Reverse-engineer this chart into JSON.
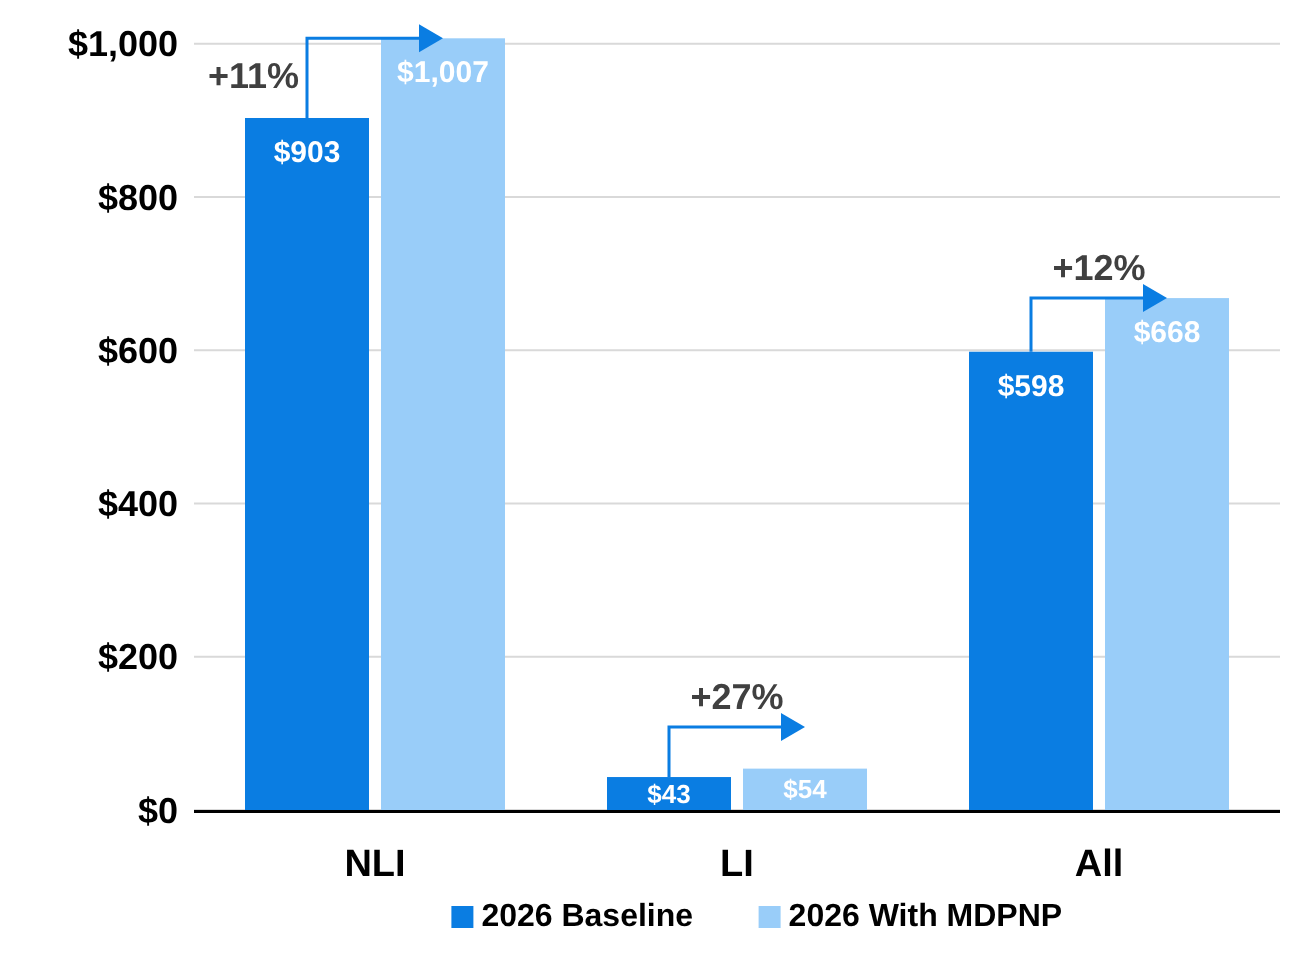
{
  "chart_data": {
    "type": "bar",
    "categories": [
      "NLI",
      "LI",
      "All"
    ],
    "series": [
      {
        "name": "2026 Baseline",
        "color": "#0a7de2",
        "values": [
          903,
          43,
          598
        ],
        "value_labels": [
          "$903",
          "$43",
          "$598"
        ]
      },
      {
        "name": "2026 With MDPNP",
        "color": "#99cdf9",
        "values": [
          1007,
          54,
          668
        ],
        "value_labels": [
          "$1,007",
          "$54",
          "$668"
        ]
      }
    ],
    "ylim": [
      0,
      1010
    ],
    "yticks": [
      {
        "value": 0,
        "label": "$0"
      },
      {
        "value": 200,
        "label": "$200"
      },
      {
        "value": 400,
        "label": "$400"
      },
      {
        "value": 600,
        "label": "$600"
      },
      {
        "value": 800,
        "label": "$800"
      },
      {
        "value": 1000,
        "label": "$1,000"
      }
    ],
    "grid": "y",
    "legend": "bottom",
    "annotations": [
      {
        "text": "+11%",
        "x": "NLI",
        "y": 1007
      },
      {
        "text": "+27%",
        "x": "LI",
        "y": 54
      },
      {
        "text": "+12%",
        "x": "All",
        "y": 668
      }
    ]
  }
}
